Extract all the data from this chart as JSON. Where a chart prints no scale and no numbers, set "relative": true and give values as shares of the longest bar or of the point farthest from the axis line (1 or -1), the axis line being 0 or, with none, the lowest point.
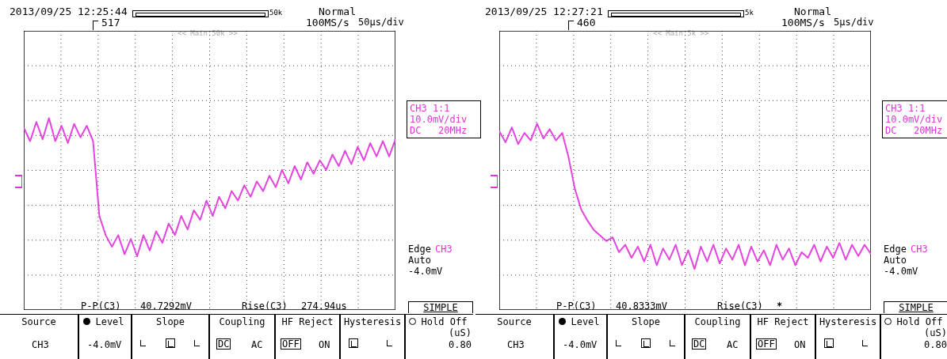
{
  "chart_data": [
    {
      "type": "line",
      "relative": true,
      "grid": true,
      "categories": [
        null,
        null,
        null,
        null,
        null,
        null,
        null,
        null,
        null,
        null,
        null,
        null,
        null,
        null,
        null,
        null,
        null,
        null,
        null,
        null,
        null,
        null,
        null,
        null,
        null,
        null,
        null,
        null,
        null,
        null,
        null,
        null,
        null,
        null,
        null,
        null,
        null,
        null,
        null,
        null,
        null,
        null,
        null,
        null,
        null,
        null,
        null,
        null,
        null,
        null,
        null,
        null,
        null,
        null,
        null,
        null,
        null,
        null,
        null,
        null
      ],
      "series": [
        {
          "color": "#e444e0",
          "values": [
            0.95,
            0.88,
            0.98,
            0.89,
            1.0,
            0.88,
            0.96,
            0.87,
            0.97,
            0.9,
            0.96,
            0.88,
            0.49,
            0.39,
            0.33,
            0.39,
            0.29,
            0.37,
            0.28,
            0.39,
            0.31,
            0.41,
            0.35,
            0.45,
            0.39,
            0.49,
            0.42,
            0.52,
            0.47,
            0.57,
            0.49,
            0.59,
            0.53,
            0.62,
            0.57,
            0.65,
            0.59,
            0.67,
            0.62,
            0.7,
            0.64,
            0.73,
            0.66,
            0.75,
            0.68,
            0.77,
            0.71,
            0.78,
            0.73,
            0.81,
            0.75,
            0.83,
            0.76,
            0.85,
            0.78,
            0.87,
            0.8,
            0.88,
            0.8,
            0.89
          ]
        }
      ],
      "annotations": [
        "2013/09/25 12:25:44",
        "50k",
        "Normal",
        "517",
        "100MS/s",
        "50µs/div",
        "<< Main:50k >>",
        "CH3 1:1",
        "10.0mV/div",
        "DC   20MHz",
        "Edge",
        "CH3",
        "Auto",
        "-4.0mV",
        "P-P(C3)",
        "40.7292mV",
        "Rise(C3)",
        "274.94us",
        "SIMPLE",
        "Source",
        "CH3",
        "Level",
        "-4.0mV",
        "Slope",
        "Coupling",
        "DC",
        "AC",
        "HF Reject",
        "OFF",
        "ON",
        "Hysteresis",
        "Hold Off",
        "(uS)",
        "0.80"
      ]
    },
    {
      "type": "line",
      "relative": true,
      "grid": true,
      "categories": [
        null,
        null,
        null,
        null,
        null,
        null,
        null,
        null,
        null,
        null,
        null,
        null,
        null,
        null,
        null,
        null,
        null,
        null,
        null,
        null,
        null,
        null,
        null,
        null,
        null,
        null,
        null,
        null,
        null,
        null,
        null,
        null,
        null,
        null,
        null,
        null,
        null,
        null,
        null,
        null,
        null,
        null,
        null,
        null,
        null,
        null,
        null,
        null,
        null,
        null,
        null,
        null,
        null,
        null,
        null,
        null,
        null,
        null,
        null,
        null
      ],
      "series": [
        {
          "color": "#e444e0",
          "values": [
            0.96,
            0.9,
            0.98,
            0.89,
            0.95,
            0.91,
            1.0,
            0.92,
            0.97,
            0.91,
            0.95,
            0.82,
            0.65,
            0.54,
            0.48,
            0.43,
            0.4,
            0.37,
            0.39,
            0.31,
            0.35,
            0.28,
            0.34,
            0.26,
            0.35,
            0.24,
            0.33,
            0.27,
            0.35,
            0.24,
            0.32,
            0.22,
            0.34,
            0.26,
            0.35,
            0.25,
            0.33,
            0.27,
            0.35,
            0.24,
            0.34,
            0.26,
            0.32,
            0.24,
            0.35,
            0.27,
            0.33,
            0.24,
            0.31,
            0.28,
            0.35,
            0.26,
            0.34,
            0.28,
            0.36,
            0.27,
            0.35,
            0.29,
            0.35,
            0.3
          ]
        }
      ],
      "annotations": [
        "2013/09/25 12:27:21",
        "5k",
        "Normal",
        "460",
        "100MS/s",
        "5µs/div",
        "<< Main:5k >>",
        "CH3 1:1",
        "10.0mV/div",
        "DC   20MHz",
        "Edge",
        "CH3",
        "Auto",
        "-4.0mV",
        "P-P(C3)",
        "40.8333mV",
        "Rise(C3)",
        "*****",
        "SIMPLE",
        "Source",
        "CH3",
        "Level",
        "-4.0mV",
        "Slope",
        "Coupling",
        "DC",
        "AC",
        "HF Reject",
        "OFF",
        "ON",
        "Hysteresis",
        "Hold Off",
        "(uS)",
        "0.80"
      ]
    }
  ]
}
